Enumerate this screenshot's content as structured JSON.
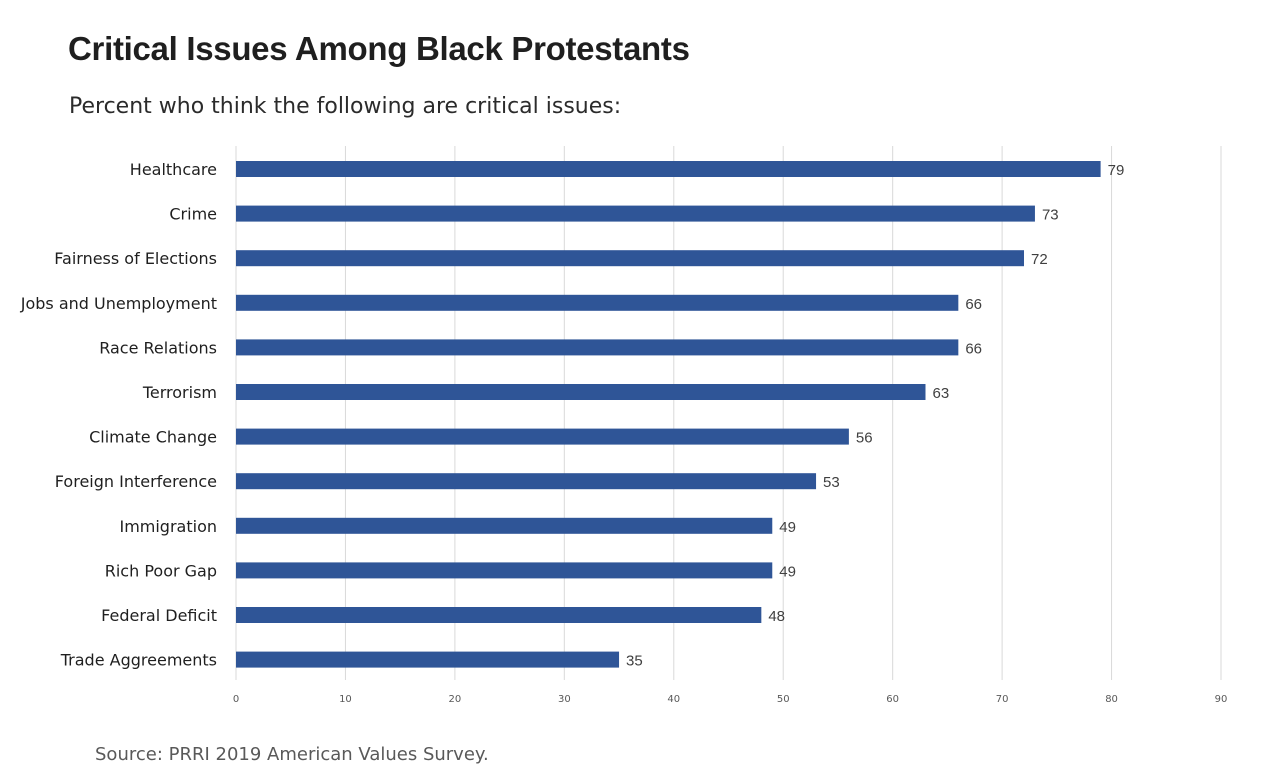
{
  "title": "Critical Issues Among Black Protestants",
  "subtitle": "Percent who think the following are critical issues:",
  "source": "Source: PRRI 2019 American Values Survey.",
  "colors": {
    "bar": "#2f5597",
    "grid": "#d9d9d9",
    "label": "#1f1f1f",
    "tick": "#595959"
  },
  "chart_data": {
    "type": "bar",
    "orientation": "horizontal",
    "categories": [
      "Healthcare",
      "Crime",
      "Fairness of Elections",
      "Jobs and Unemployment",
      "Race Relations",
      "Terrorism",
      "Climate Change",
      "Foreign Interference",
      "Immigration",
      "Rich Poor Gap",
      "Federal Deficit",
      "Trade Aggreements"
    ],
    "values": [
      79,
      73,
      72,
      66,
      66,
      63,
      56,
      53,
      49,
      49,
      48,
      35
    ],
    "xlim": [
      0,
      90
    ],
    "xticks": [
      0,
      10,
      20,
      30,
      40,
      50,
      60,
      70,
      80,
      90
    ],
    "grid": true,
    "data_labels": true
  }
}
